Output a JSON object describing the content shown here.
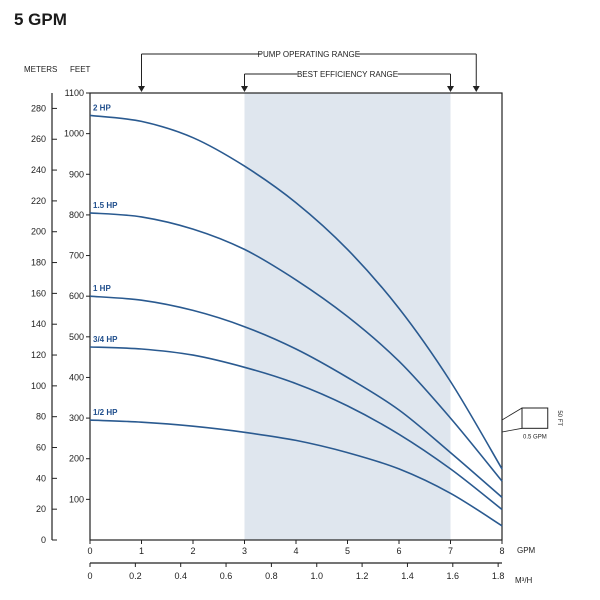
{
  "chart_data": {
    "type": "line",
    "title": "5 GPM",
    "ylabel_left": "METERS",
    "ylabel_right": "FEET",
    "xlabel_top": "GPM",
    "xlabel_bottom": "M³/H",
    "x_gpm": {
      "range": [
        0,
        8
      ],
      "ticks": [
        "0",
        "1",
        "2",
        "3",
        "4",
        "5",
        "6",
        "7",
        "8"
      ]
    },
    "x_m3h": {
      "range": [
        0,
        1.817
      ],
      "ticks": [
        "0",
        "0.2",
        "0.4",
        "0.6",
        "0.8",
        "1.0",
        "1.2",
        "1.4",
        "1.6",
        "1.8"
      ]
    },
    "y_feet": {
      "range": [
        0,
        1100
      ],
      "ticks": [
        "100",
        "200",
        "300",
        "400",
        "500",
        "600",
        "700",
        "800",
        "900",
        "1000",
        "1100"
      ]
    },
    "y_meters": {
      "range": [
        0,
        290
      ],
      "ticks": [
        "0",
        "20",
        "40",
        "60",
        "80",
        "100",
        "120",
        "140",
        "160",
        "180",
        "200",
        "220",
        "240",
        "260",
        "280"
      ]
    },
    "pump_operating_range": {
      "label": "PUMP OPERATING RANGE",
      "gpm": [
        1,
        7.5
      ]
    },
    "best_efficiency_range": {
      "label": "BEST EFFICIENCY RANGE",
      "gpm": [
        3,
        7
      ]
    },
    "series": [
      {
        "name": "2 HP",
        "x": [
          0,
          1,
          2,
          3,
          4,
          5,
          6,
          7,
          8
        ],
        "values": [
          1045,
          1030,
          990,
          920,
          830,
          715,
          570,
          390,
          175
        ]
      },
      {
        "name": "1.5 HP",
        "x": [
          0,
          1,
          2,
          3,
          4,
          5,
          6,
          7,
          8
        ],
        "values": [
          805,
          795,
          765,
          715,
          640,
          550,
          440,
          300,
          145
        ]
      },
      {
        "name": "1 HP",
        "x": [
          0,
          1,
          2,
          3,
          4,
          5,
          6,
          7,
          8
        ],
        "values": [
          600,
          590,
          565,
          525,
          470,
          400,
          320,
          215,
          105
        ]
      },
      {
        "name": "3/4 HP",
        "x": [
          0,
          1,
          2,
          3,
          4,
          5,
          6,
          7,
          8
        ],
        "values": [
          475,
          470,
          455,
          425,
          385,
          330,
          260,
          175,
          75
        ]
      },
      {
        "name": "1/2 HP",
        "x": [
          0,
          1,
          2,
          3,
          4,
          5,
          6,
          7,
          8
        ],
        "values": [
          295,
          290,
          280,
          265,
          245,
          215,
          175,
          115,
          35
        ]
      }
    ],
    "scale_box": {
      "width_label": "0.5 GPM",
      "height_label": "50 FT"
    },
    "grid": false,
    "colors": {
      "curve": "#2a5a90",
      "band": "#dfe6ee",
      "axis": "#222222",
      "title": "#1a1a1a",
      "label": "#1f4e8c"
    }
  }
}
